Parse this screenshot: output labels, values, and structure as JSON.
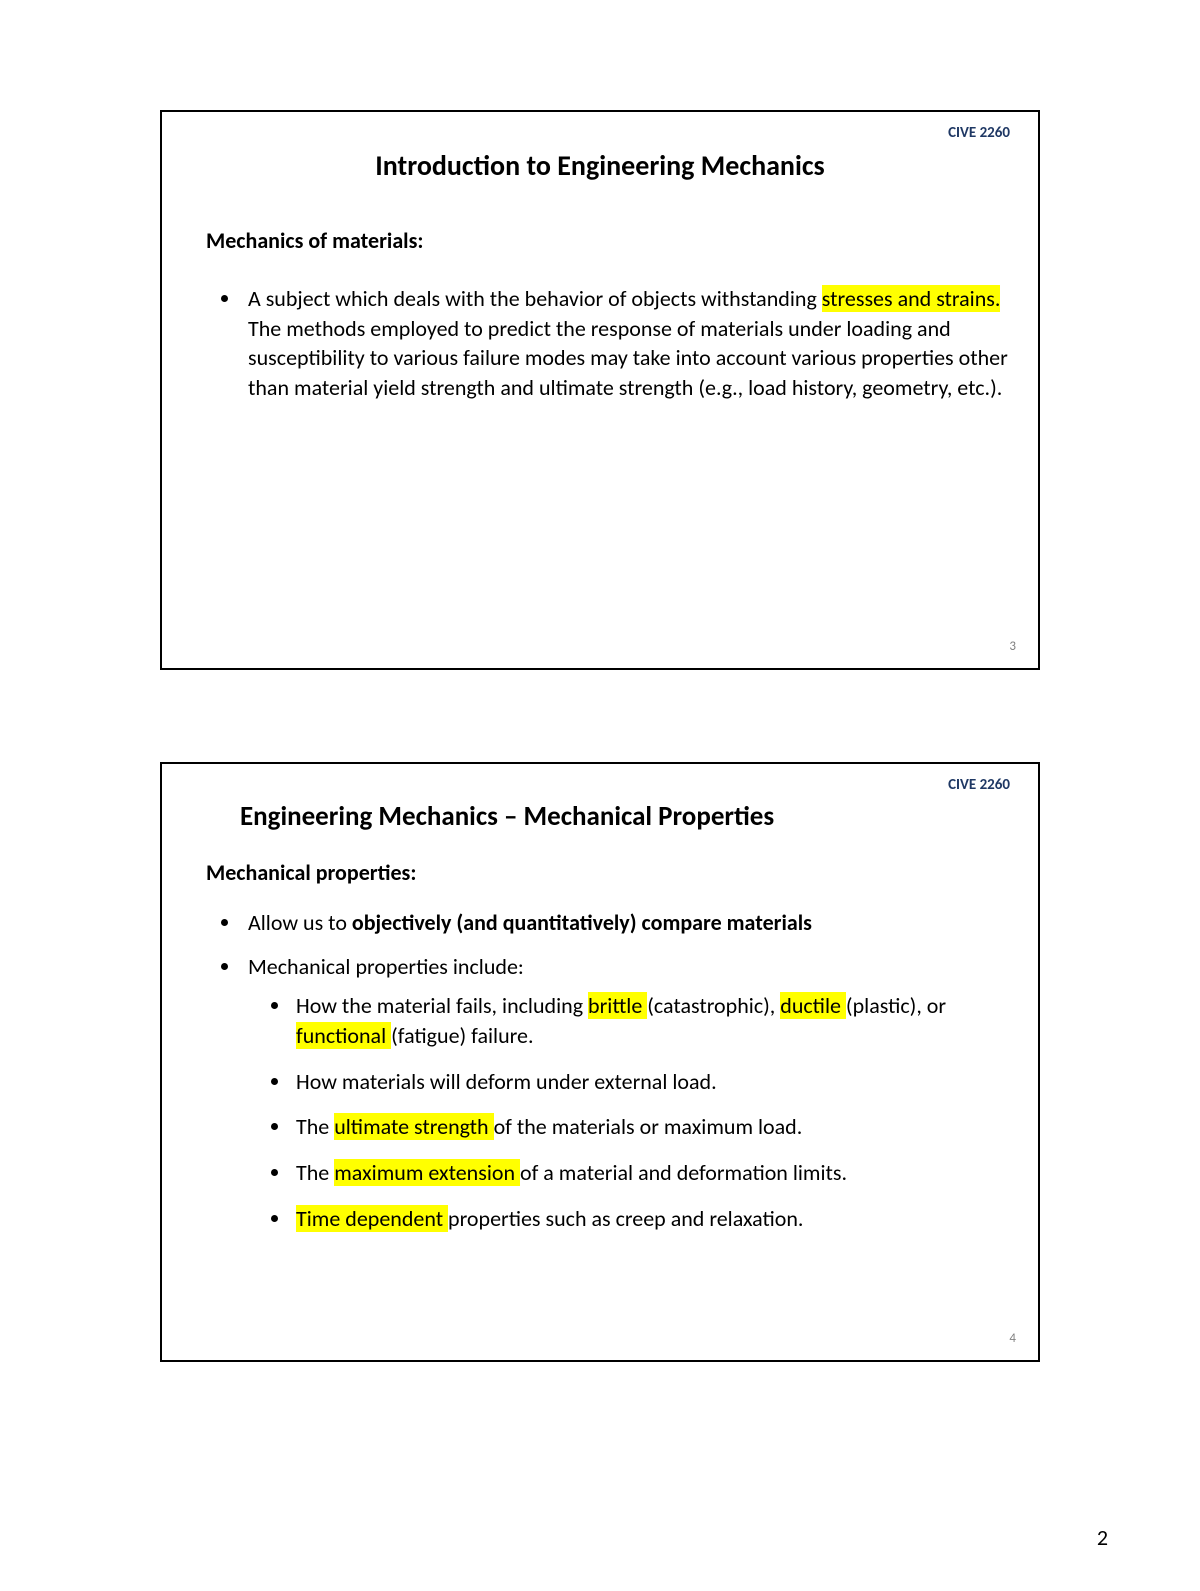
{
  "page_number": "2",
  "course_code": "CIVE 2260",
  "slide1": {
    "title": "Introduction to Engineering Mechanics",
    "subheading": "Mechanics of materials:",
    "bullet_pre": "A subject which deals with the behavior of objects withstanding ",
    "bullet_hl": "stresses and strains.",
    "bullet_post": " The methods employed to predict the response of materials under loading and susceptibility to various failure modes may take into account various properties other than material yield strength and ultimate strength (e.g., load history, geometry, etc.).",
    "slide_number": "3"
  },
  "slide2": {
    "title": "Engineering Mechanics – Mechanical Properties",
    "subheading": "Mechanical properties:",
    "b1_pre": "Allow us to ",
    "b1_bold": "objectively (and quantitatively) compare materials",
    "b2": "Mechanical properties include:",
    "s1_pre": "How the material fails, including ",
    "s1_hl1": "brittle ",
    "s1_mid1": "(catastrophic), ",
    "s1_hl2": "ductile ",
    "s1_mid2": "(plastic), or ",
    "s1_hl3": "functional ",
    "s1_post": "(fatigue) failure.",
    "s2": "How materials will deform under external load.",
    "s3_pre": "The ",
    "s3_hl": "ultimate strength ",
    "s3_post": "of the materials or maximum load.",
    "s4_pre": "The ",
    "s4_hl": "maximum extension ",
    "s4_post": "of a material and deformation limits.",
    "s5_hl": "Time dependent ",
    "s5_post": "properties such as creep and relaxation.",
    "slide_number": "4"
  }
}
